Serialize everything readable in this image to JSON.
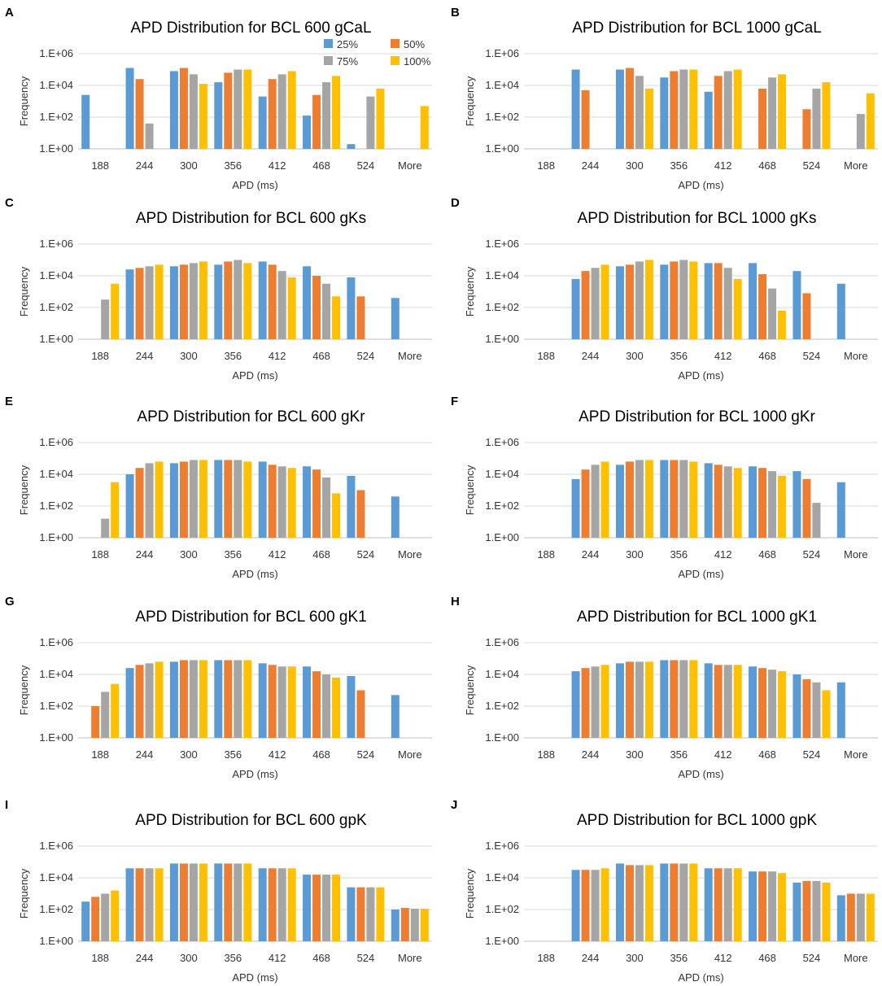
{
  "figure": {
    "legend": [
      "25%",
      "50%",
      "75%",
      "100%"
    ],
    "colors": {
      "25%": "#5b9bd5",
      "50%": "#ed7d31",
      "75%": "#a5a5a5",
      "100%": "#ffc000"
    }
  },
  "chart_data": [
    {
      "panel": "A",
      "type": "bar",
      "title": "APD Distribution for BCL 600 gCaL",
      "xlabel": "APD (ms)",
      "ylabel": "Frequency",
      "yscale": "log10",
      "ylim": [
        0,
        6
      ],
      "yticks": [
        "1.E+00",
        "1.E+02",
        "1.E+04",
        "1.E+06"
      ],
      "categories": [
        "188",
        "244",
        "300",
        "356",
        "412",
        "468",
        "524",
        "More"
      ],
      "series": [
        {
          "name": "25%",
          "values": [
            3.4,
            5.1,
            4.9,
            4.2,
            3.3,
            2.1,
            0.3,
            0
          ]
        },
        {
          "name": "50%",
          "values": [
            0,
            4.4,
            5.1,
            4.8,
            4.4,
            3.4,
            0,
            0
          ]
        },
        {
          "name": "75%",
          "values": [
            0,
            1.6,
            4.7,
            5.0,
            4.7,
            4.2,
            3.3,
            0
          ]
        },
        {
          "name": "100%",
          "values": [
            0,
            0,
            4.1,
            5.0,
            4.9,
            4.6,
            3.8,
            2.7
          ]
        }
      ]
    },
    {
      "panel": "B",
      "type": "bar",
      "title": "APD Distribution for BCL 1000 gCaL",
      "xlabel": "APD (ms)",
      "ylabel": "Frequency",
      "yscale": "log10",
      "ylim": [
        0,
        6
      ],
      "yticks": [
        "1.E+00",
        "1.E+02",
        "1.E+04",
        "1.E+06"
      ],
      "categories": [
        "188",
        "244",
        "300",
        "356",
        "412",
        "468",
        "524",
        "More"
      ],
      "series": [
        {
          "name": "25%",
          "values": [
            0,
            5.0,
            5.0,
            4.5,
            3.6,
            0,
            0,
            0
          ]
        },
        {
          "name": "50%",
          "values": [
            0,
            3.7,
            5.1,
            4.9,
            4.6,
            3.8,
            2.5,
            0
          ]
        },
        {
          "name": "75%",
          "values": [
            0,
            0,
            4.6,
            5.0,
            4.9,
            4.5,
            3.8,
            2.2
          ]
        },
        {
          "name": "100%",
          "values": [
            0,
            0,
            3.8,
            5.0,
            5.0,
            4.7,
            4.2,
            3.5
          ]
        }
      ]
    },
    {
      "panel": "C",
      "type": "bar",
      "title": "APD Distribution for BCL 600 gKs",
      "xlabel": "APD (ms)",
      "ylabel": "Frequency",
      "yscale": "log10",
      "ylim": [
        0,
        6
      ],
      "yticks": [
        "1.E+00",
        "1.E+02",
        "1.E+04",
        "1.E+06"
      ],
      "categories": [
        "188",
        "244",
        "300",
        "356",
        "412",
        "468",
        "524",
        "More"
      ],
      "series": [
        {
          "name": "25%",
          "values": [
            0,
            4.4,
            4.6,
            4.7,
            4.9,
            4.6,
            3.9,
            2.6
          ]
        },
        {
          "name": "50%",
          "values": [
            0,
            4.5,
            4.7,
            4.9,
            4.7,
            4.0,
            2.7,
            0
          ]
        },
        {
          "name": "75%",
          "values": [
            2.5,
            4.6,
            4.8,
            5.0,
            4.3,
            3.5,
            0,
            0
          ]
        },
        {
          "name": "100%",
          "values": [
            3.5,
            4.7,
            4.9,
            4.8,
            3.9,
            2.7,
            0,
            0
          ]
        }
      ]
    },
    {
      "panel": "D",
      "type": "bar",
      "title": "APD Distribution for BCL 1000 gKs",
      "xlabel": "APD (ms)",
      "ylabel": "Frequency",
      "yscale": "log10",
      "ylim": [
        0,
        6
      ],
      "yticks": [
        "1.E+00",
        "1.E+02",
        "1.E+04",
        "1.E+06"
      ],
      "categories": [
        "188",
        "244",
        "300",
        "356",
        "412",
        "468",
        "524",
        "More"
      ],
      "series": [
        {
          "name": "25%",
          "values": [
            0,
            3.8,
            4.6,
            4.7,
            4.8,
            4.8,
            4.3,
            3.5
          ]
        },
        {
          "name": "50%",
          "values": [
            0,
            4.3,
            4.7,
            4.9,
            4.8,
            4.1,
            2.9,
            0
          ]
        },
        {
          "name": "75%",
          "values": [
            0,
            4.5,
            4.9,
            5.0,
            4.5,
            3.2,
            0,
            0
          ]
        },
        {
          "name": "100%",
          "values": [
            0,
            4.7,
            5.0,
            4.9,
            3.8,
            1.8,
            0,
            0
          ]
        }
      ]
    },
    {
      "panel": "E",
      "type": "bar",
      "title": "APD Distribution for BCL 600 gKr",
      "xlabel": "APD (ms)",
      "ylabel": "Frequency",
      "yscale": "log10",
      "ylim": [
        0,
        6
      ],
      "yticks": [
        "1.E+00",
        "1.E+02",
        "1.E+04",
        "1.E+06"
      ],
      "categories": [
        "188",
        "244",
        "300",
        "356",
        "412",
        "468",
        "524",
        "More"
      ],
      "series": [
        {
          "name": "25%",
          "values": [
            0,
            4.0,
            4.7,
            4.9,
            4.8,
            4.5,
            3.9,
            2.6
          ]
        },
        {
          "name": "50%",
          "values": [
            0,
            4.4,
            4.8,
            4.9,
            4.6,
            4.3,
            3.0,
            0
          ]
        },
        {
          "name": "75%",
          "values": [
            1.2,
            4.7,
            4.9,
            4.9,
            4.5,
            3.8,
            0,
            0
          ]
        },
        {
          "name": "100%",
          "values": [
            3.5,
            4.8,
            4.9,
            4.8,
            4.4,
            2.8,
            0,
            0
          ]
        }
      ]
    },
    {
      "panel": "F",
      "type": "bar",
      "title": "APD Distribution for BCL 1000 gKr",
      "xlabel": "APD (ms)",
      "ylabel": "Frequency",
      "yscale": "log10",
      "ylim": [
        0,
        6
      ],
      "yticks": [
        "1.E+00",
        "1.E+02",
        "1.E+04",
        "1.E+06"
      ],
      "categories": [
        "188",
        "244",
        "300",
        "356",
        "412",
        "468",
        "524",
        "More"
      ],
      "series": [
        {
          "name": "25%",
          "values": [
            0,
            3.7,
            4.6,
            4.9,
            4.7,
            4.5,
            4.2,
            3.5
          ]
        },
        {
          "name": "50%",
          "values": [
            0,
            4.3,
            4.8,
            4.9,
            4.6,
            4.4,
            3.7,
            0
          ]
        },
        {
          "name": "75%",
          "values": [
            0,
            4.6,
            4.9,
            4.9,
            4.5,
            4.2,
            2.2,
            0
          ]
        },
        {
          "name": "100%",
          "values": [
            0,
            4.8,
            4.9,
            4.8,
            4.4,
            3.9,
            0,
            0
          ]
        }
      ]
    },
    {
      "panel": "G",
      "type": "bar",
      "title": "APD Distribution for BCL 600 gK1",
      "xlabel": "APD (ms)",
      "ylabel": "Frequency",
      "yscale": "log10",
      "ylim": [
        0,
        6
      ],
      "yticks": [
        "1.E+00",
        "1.E+02",
        "1.E+04",
        "1.E+06"
      ],
      "categories": [
        "188",
        "244",
        "300",
        "356",
        "412",
        "468",
        "524",
        "More"
      ],
      "series": [
        {
          "name": "25%",
          "values": [
            0,
            4.4,
            4.8,
            4.9,
            4.7,
            4.5,
            3.9,
            2.7
          ]
        },
        {
          "name": "50%",
          "values": [
            2.0,
            4.6,
            4.9,
            4.9,
            4.6,
            4.2,
            3.0,
            0
          ]
        },
        {
          "name": "75%",
          "values": [
            2.9,
            4.7,
            4.9,
            4.9,
            4.5,
            4.0,
            0,
            0
          ]
        },
        {
          "name": "100%",
          "values": [
            3.4,
            4.8,
            4.9,
            4.9,
            4.5,
            3.8,
            0,
            0
          ]
        }
      ]
    },
    {
      "panel": "H",
      "type": "bar",
      "title": "APD Distribution for BCL 1000 gK1",
      "xlabel": "APD (ms)",
      "ylabel": "Frequency",
      "yscale": "log10",
      "ylim": [
        0,
        6
      ],
      "yticks": [
        "1.E+00",
        "1.E+02",
        "1.E+04",
        "1.E+06"
      ],
      "categories": [
        "188",
        "244",
        "300",
        "356",
        "412",
        "468",
        "524",
        "More"
      ],
      "series": [
        {
          "name": "25%",
          "values": [
            0,
            4.2,
            4.7,
            4.9,
            4.7,
            4.5,
            4.0,
            3.5
          ]
        },
        {
          "name": "50%",
          "values": [
            0,
            4.4,
            4.8,
            4.9,
            4.6,
            4.4,
            3.7,
            0
          ]
        },
        {
          "name": "75%",
          "values": [
            0,
            4.5,
            4.8,
            4.9,
            4.6,
            4.3,
            3.5,
            0
          ]
        },
        {
          "name": "100%",
          "values": [
            0,
            4.6,
            4.8,
            4.9,
            4.6,
            4.2,
            3.0,
            0
          ]
        }
      ]
    },
    {
      "panel": "I",
      "type": "bar",
      "title": "APD Distribution for BCL 600 gpK",
      "xlabel": "APD (ms)",
      "ylabel": "Frequency",
      "yscale": "log10",
      "ylim": [
        0,
        6
      ],
      "yticks": [
        "1.E+00",
        "1.E+02",
        "1.E+04",
        "1.E+06"
      ],
      "categories": [
        "188",
        "244",
        "300",
        "356",
        "412",
        "468",
        "524",
        "More"
      ],
      "series": [
        {
          "name": "25%",
          "values": [
            2.5,
            4.6,
            4.9,
            4.9,
            4.6,
            4.2,
            3.4,
            2.0
          ]
        },
        {
          "name": "50%",
          "values": [
            2.8,
            4.6,
            4.9,
            4.9,
            4.6,
            4.2,
            3.4,
            2.1
          ]
        },
        {
          "name": "75%",
          "values": [
            3.0,
            4.6,
            4.9,
            4.9,
            4.6,
            4.2,
            3.4,
            2.05
          ]
        },
        {
          "name": "100%",
          "values": [
            3.2,
            4.6,
            4.9,
            4.9,
            4.6,
            4.2,
            3.4,
            2.05
          ]
        }
      ]
    },
    {
      "panel": "J",
      "type": "bar",
      "title": "APD Distribution for BCL 1000 gpK",
      "xlabel": "APD (ms)",
      "ylabel": "Frequency",
      "yscale": "log10",
      "ylim": [
        0,
        6
      ],
      "yticks": [
        "1.E+00",
        "1.E+02",
        "1.E+04",
        "1.E+06"
      ],
      "categories": [
        "188",
        "244",
        "300",
        "356",
        "412",
        "468",
        "524",
        "More"
      ],
      "series": [
        {
          "name": "25%",
          "values": [
            0,
            4.5,
            4.9,
            4.9,
            4.6,
            4.4,
            3.7,
            2.9
          ]
        },
        {
          "name": "50%",
          "values": [
            0,
            4.5,
            4.8,
            4.9,
            4.6,
            4.4,
            3.8,
            3.0
          ]
        },
        {
          "name": "75%",
          "values": [
            0,
            4.5,
            4.8,
            4.9,
            4.6,
            4.4,
            3.8,
            3.0
          ]
        },
        {
          "name": "100%",
          "values": [
            0,
            4.6,
            4.8,
            4.9,
            4.6,
            4.3,
            3.7,
            3.0
          ]
        }
      ]
    }
  ]
}
